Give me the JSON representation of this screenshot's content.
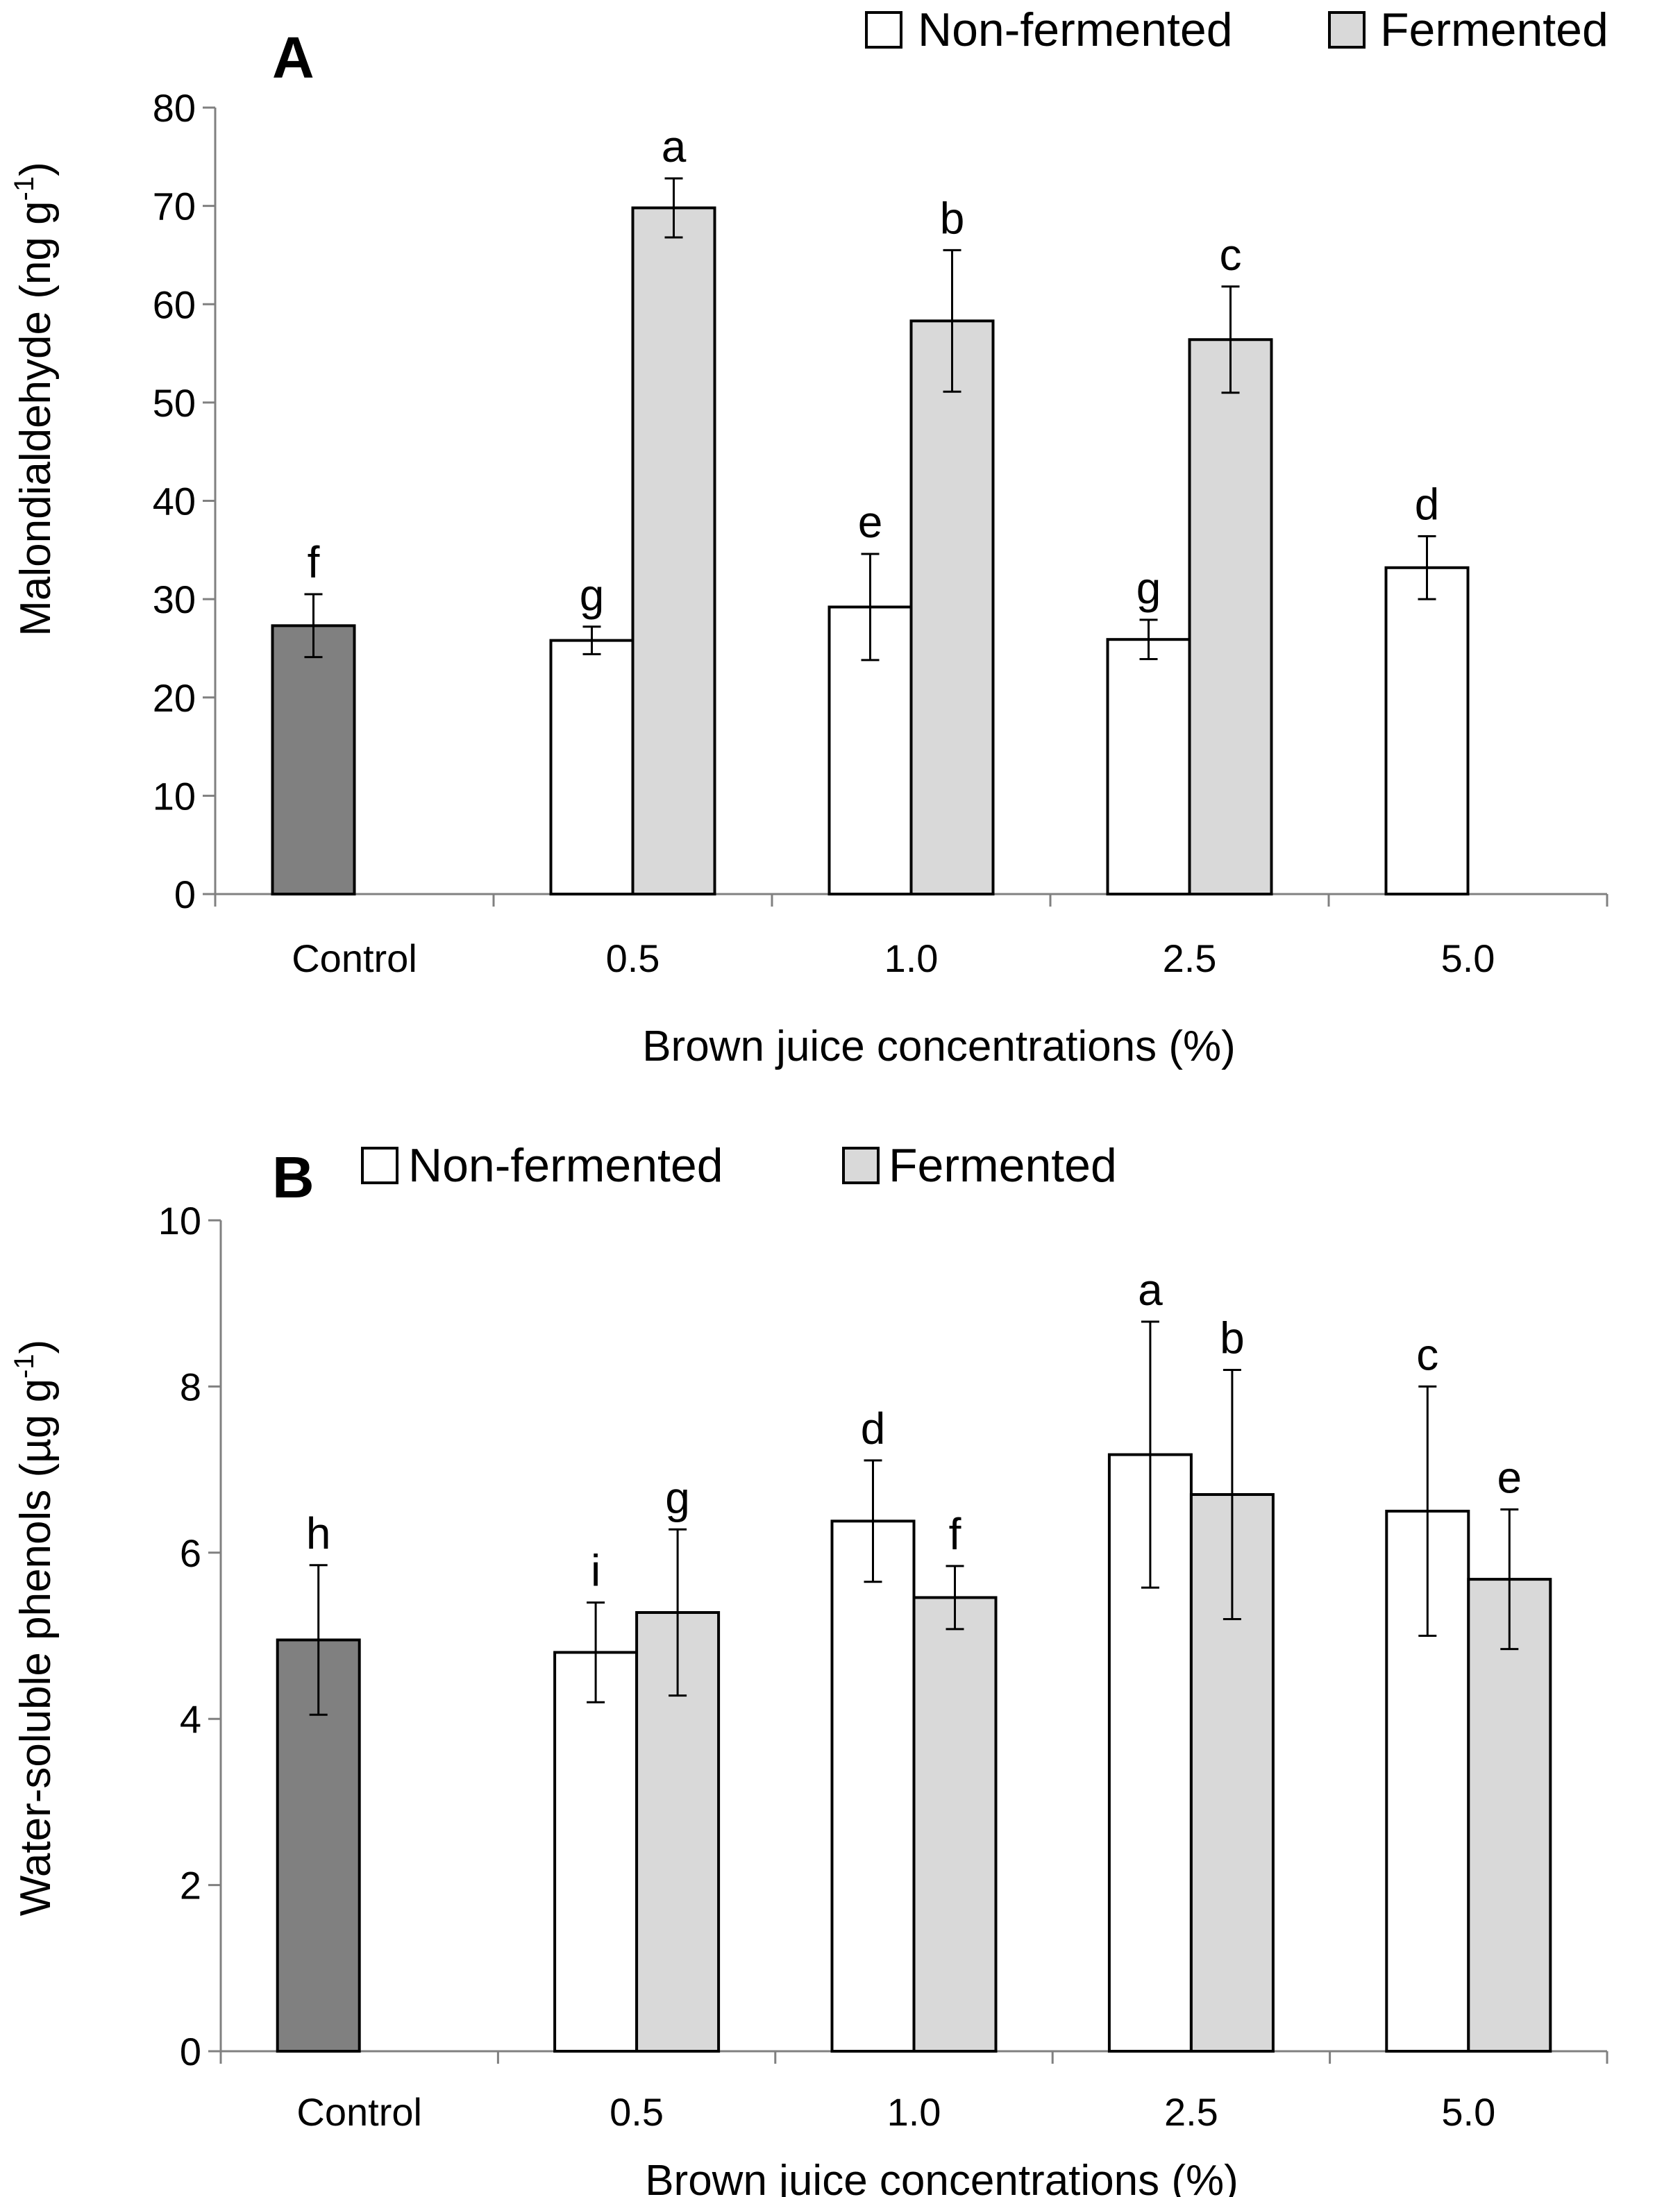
{
  "colors": {
    "control": "#808080",
    "non_fermented": "#ffffff",
    "fermented": "#d9d9d9",
    "outline": "#000000",
    "axis": "#808080"
  },
  "chart_data": [
    {
      "type": "bar",
      "panel_label": "A",
      "categories": [
        "Control",
        "0.5",
        "1.0",
        "2.5",
        "5.0"
      ],
      "xlabel": "Brown juice concentrations (%)",
      "ylabel": "Malondialdehyde (ng g-1)",
      "ylabel_main": "Malondialdehyde (ng g",
      "ylabel_sup": "-1",
      "ylabel_end": ")",
      "ylim": [
        0,
        80
      ],
      "yticks": [
        "0",
        "10",
        "20",
        "30",
        "40",
        "50",
        "60",
        "70",
        "80"
      ],
      "grid": false,
      "legend_position": "top-right",
      "legend": [
        "Non-fermented",
        "Fermented"
      ],
      "series": [
        {
          "name": "Control",
          "color_key": "control",
          "slot": "left",
          "values": [
            27.3,
            null,
            null,
            null,
            null
          ],
          "errors": [
            3.2,
            null,
            null,
            null,
            null
          ],
          "letters": [
            "f",
            null,
            null,
            null,
            null
          ]
        },
        {
          "name": "Non-fermented",
          "color_key": "non_fermented",
          "slot": "left",
          "values": [
            null,
            25.8,
            29.2,
            25.9,
            33.2
          ],
          "errors": [
            null,
            1.4,
            5.4,
            2.0,
            3.2
          ],
          "letters": [
            null,
            "g",
            "e",
            "g",
            "d"
          ]
        },
        {
          "name": "Fermented",
          "color_key": "fermented",
          "slot": "right",
          "values": [
            null,
            69.8,
            58.3,
            56.4,
            null
          ],
          "errors": [
            null,
            3.0,
            7.2,
            5.4,
            null
          ],
          "letters": [
            null,
            "a",
            "b",
            "c",
            null
          ]
        }
      ]
    },
    {
      "type": "bar",
      "panel_label": "B",
      "categories": [
        "Control",
        "0.5",
        "1.0",
        "2.5",
        "5.0"
      ],
      "xlabel": "Brown juice concentrations (%)",
      "ylabel": "Water-soluble phenols (µg g-1)",
      "ylabel_main": "Water-soluble phenols (µg g",
      "ylabel_sup": "-1",
      "ylabel_end": ")",
      "ylim": [
        0,
        10
      ],
      "yticks": [
        "0",
        "2",
        "4",
        "6",
        "8",
        "10"
      ],
      "grid": false,
      "legend_position": "top-left",
      "legend": [
        "Non-fermented",
        "Fermented"
      ],
      "series": [
        {
          "name": "Control",
          "color_key": "control",
          "slot": "left",
          "values": [
            4.95,
            null,
            null,
            null,
            null
          ],
          "errors": [
            0.9,
            null,
            null,
            null,
            null
          ],
          "letters": [
            "h",
            null,
            null,
            null,
            null
          ]
        },
        {
          "name": "Non-fermented",
          "color_key": "non_fermented",
          "slot": "left",
          "values": [
            null,
            4.8,
            6.38,
            7.18,
            6.5
          ],
          "errors": [
            null,
            0.6,
            0.73,
            1.6,
            1.5
          ],
          "letters": [
            null,
            "i",
            "d",
            "a",
            "c"
          ]
        },
        {
          "name": "Fermented",
          "color_key": "fermented",
          "slot": "right",
          "values": [
            null,
            5.28,
            5.46,
            6.7,
            5.68
          ],
          "errors": [
            null,
            1.0,
            0.38,
            1.5,
            0.84
          ],
          "letters": [
            null,
            "g",
            "f",
            "b",
            "e"
          ]
        }
      ]
    }
  ]
}
